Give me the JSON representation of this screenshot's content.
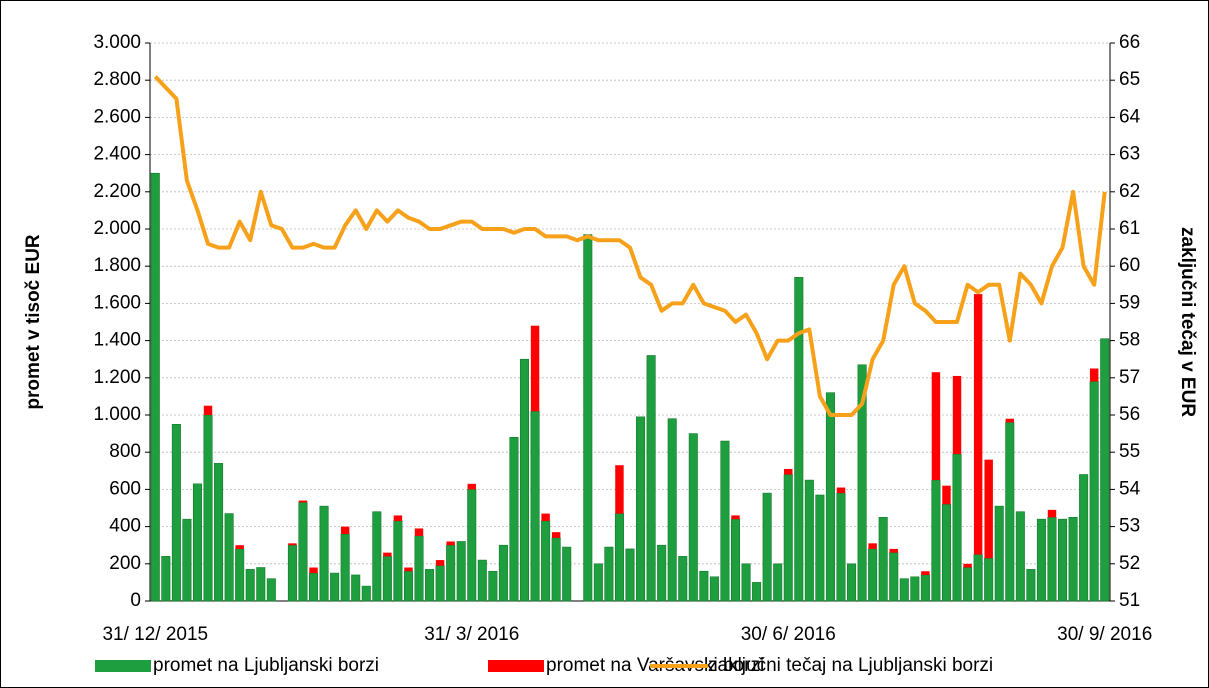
{
  "chart_data": {
    "type": "bar",
    "stacked": true,
    "categories": [
      "31/ 12/ 2015",
      null,
      null,
      null,
      null,
      null,
      null,
      null,
      null,
      null,
      null,
      null,
      null,
      null,
      null,
      null,
      null,
      null,
      null,
      null,
      null,
      null,
      null,
      null,
      null,
      null,
      null,
      null,
      null,
      null,
      "31/ 3/ 2016",
      null,
      null,
      null,
      null,
      null,
      null,
      null,
      null,
      null,
      null,
      null,
      null,
      null,
      null,
      null,
      null,
      null,
      null,
      null,
      null,
      null,
      null,
      null,
      null,
      null,
      null,
      null,
      null,
      null,
      "30/ 6/ 2016",
      null,
      null,
      null,
      null,
      null,
      null,
      null,
      null,
      null,
      null,
      null,
      null,
      null,
      null,
      null,
      null,
      null,
      null,
      null,
      null,
      null,
      null,
      null,
      null,
      null,
      null,
      null,
      null,
      null,
      "30/ 9/ 2016"
    ],
    "series": [
      {
        "name": "promet na Ljubljanski borzi",
        "color": "#1e9e3e",
        "values": [
          2300,
          240,
          950,
          440,
          630,
          1000,
          740,
          470,
          280,
          170,
          180,
          120,
          0,
          300,
          530,
          150,
          510,
          150,
          360,
          140,
          80,
          480,
          240,
          430,
          160,
          350,
          170,
          190,
          300,
          320,
          600,
          220,
          160,
          300,
          880,
          1300,
          1020,
          430,
          340,
          290,
          0,
          1970,
          200,
          290,
          470,
          280,
          990,
          1320,
          300,
          980,
          240,
          900,
          160,
          130,
          860,
          440,
          200,
          100,
          580,
          200,
          680,
          1740,
          650,
          570,
          1120,
          580,
          200,
          1270,
          280,
          450,
          260,
          120,
          130,
          140,
          650,
          520,
          790,
          180,
          250,
          230,
          510,
          960,
          480,
          170,
          440,
          450,
          440,
          450,
          680,
          1180,
          1410
        ]
      },
      {
        "name": "promet na Varšavski borzi",
        "color": "#ff0000",
        "values": [
          0,
          0,
          0,
          0,
          0,
          50,
          0,
          0,
          20,
          0,
          0,
          0,
          0,
          10,
          10,
          30,
          0,
          0,
          40,
          0,
          0,
          0,
          20,
          30,
          20,
          40,
          0,
          30,
          20,
          0,
          30,
          0,
          0,
          0,
          0,
          0,
          460,
          40,
          30,
          0,
          0,
          0,
          0,
          0,
          260,
          0,
          0,
          0,
          0,
          0,
          0,
          0,
          0,
          0,
          0,
          20,
          0,
          0,
          0,
          0,
          30,
          0,
          0,
          0,
          0,
          30,
          0,
          0,
          30,
          0,
          20,
          0,
          0,
          20,
          580,
          100,
          420,
          20,
          1400,
          530,
          0,
          20,
          0,
          0,
          0,
          40,
          0,
          0,
          0,
          70,
          0
        ]
      },
      {
        "name": "zaključni tečaj na Ljubljanski borzi",
        "color": "#f7a11a",
        "axis": "y2",
        "values": [
          65.1,
          64.8,
          64.5,
          62.3,
          61.5,
          60.6,
          60.5,
          60.5,
          61.2,
          60.7,
          62,
          61.1,
          61,
          60.5,
          60.5,
          60.6,
          60.5,
          60.5,
          61.1,
          61.5,
          61,
          61.5,
          61.2,
          61.5,
          61.3,
          61.2,
          61,
          61,
          61.1,
          61.2,
          61.2,
          61,
          61,
          61,
          60.9,
          61,
          61,
          60.8,
          60.8,
          60.8,
          60.7,
          60.8,
          60.7,
          60.7,
          60.7,
          60.5,
          59.7,
          59.5,
          58.8,
          59,
          59,
          59.5,
          59,
          58.9,
          58.8,
          58.5,
          58.7,
          58.2,
          57.5,
          58,
          58,
          58.2,
          58.3,
          56.5,
          56,
          56,
          56,
          56.3,
          57.5,
          58,
          59.5,
          60,
          59,
          58.8,
          58.5,
          58.5,
          58.5,
          59.5,
          59.3,
          59.5,
          59.5,
          58,
          59.8,
          59.5,
          59,
          60,
          60.5,
          62,
          60,
          59.5,
          62
        ]
      }
    ],
    "ylabel": "promet v tisoč EUR",
    "y2label": "zaključni tečaj v EUR",
    "ylim": [
      0,
      3000
    ],
    "yticks": [
      0,
      200,
      400,
      600,
      800,
      {
        "value": 1000,
        "label": "1.000"
      },
      {
        "value": 1200,
        "label": "1.200"
      },
      {
        "value": 1400,
        "label": "1.400"
      },
      {
        "value": 1600,
        "label": "1.600"
      },
      {
        "value": 1800,
        "label": "1.800"
      },
      {
        "value": 2000,
        "label": "2.000"
      },
      {
        "value": 2200,
        "label": "2.200"
      },
      {
        "value": 2400,
        "label": "2.400"
      },
      {
        "value": 2600,
        "label": "2.600"
      },
      {
        "value": 2800,
        "label": "2.800"
      },
      {
        "value": 3000,
        "label": "3.000"
      }
    ],
    "y2lim": [
      51,
      66
    ],
    "y2ticks": [
      51,
      52,
      53,
      54,
      55,
      56,
      57,
      58,
      59,
      60,
      61,
      62,
      63,
      64,
      65,
      66
    ],
    "grid": true,
    "legend": "bottom"
  }
}
